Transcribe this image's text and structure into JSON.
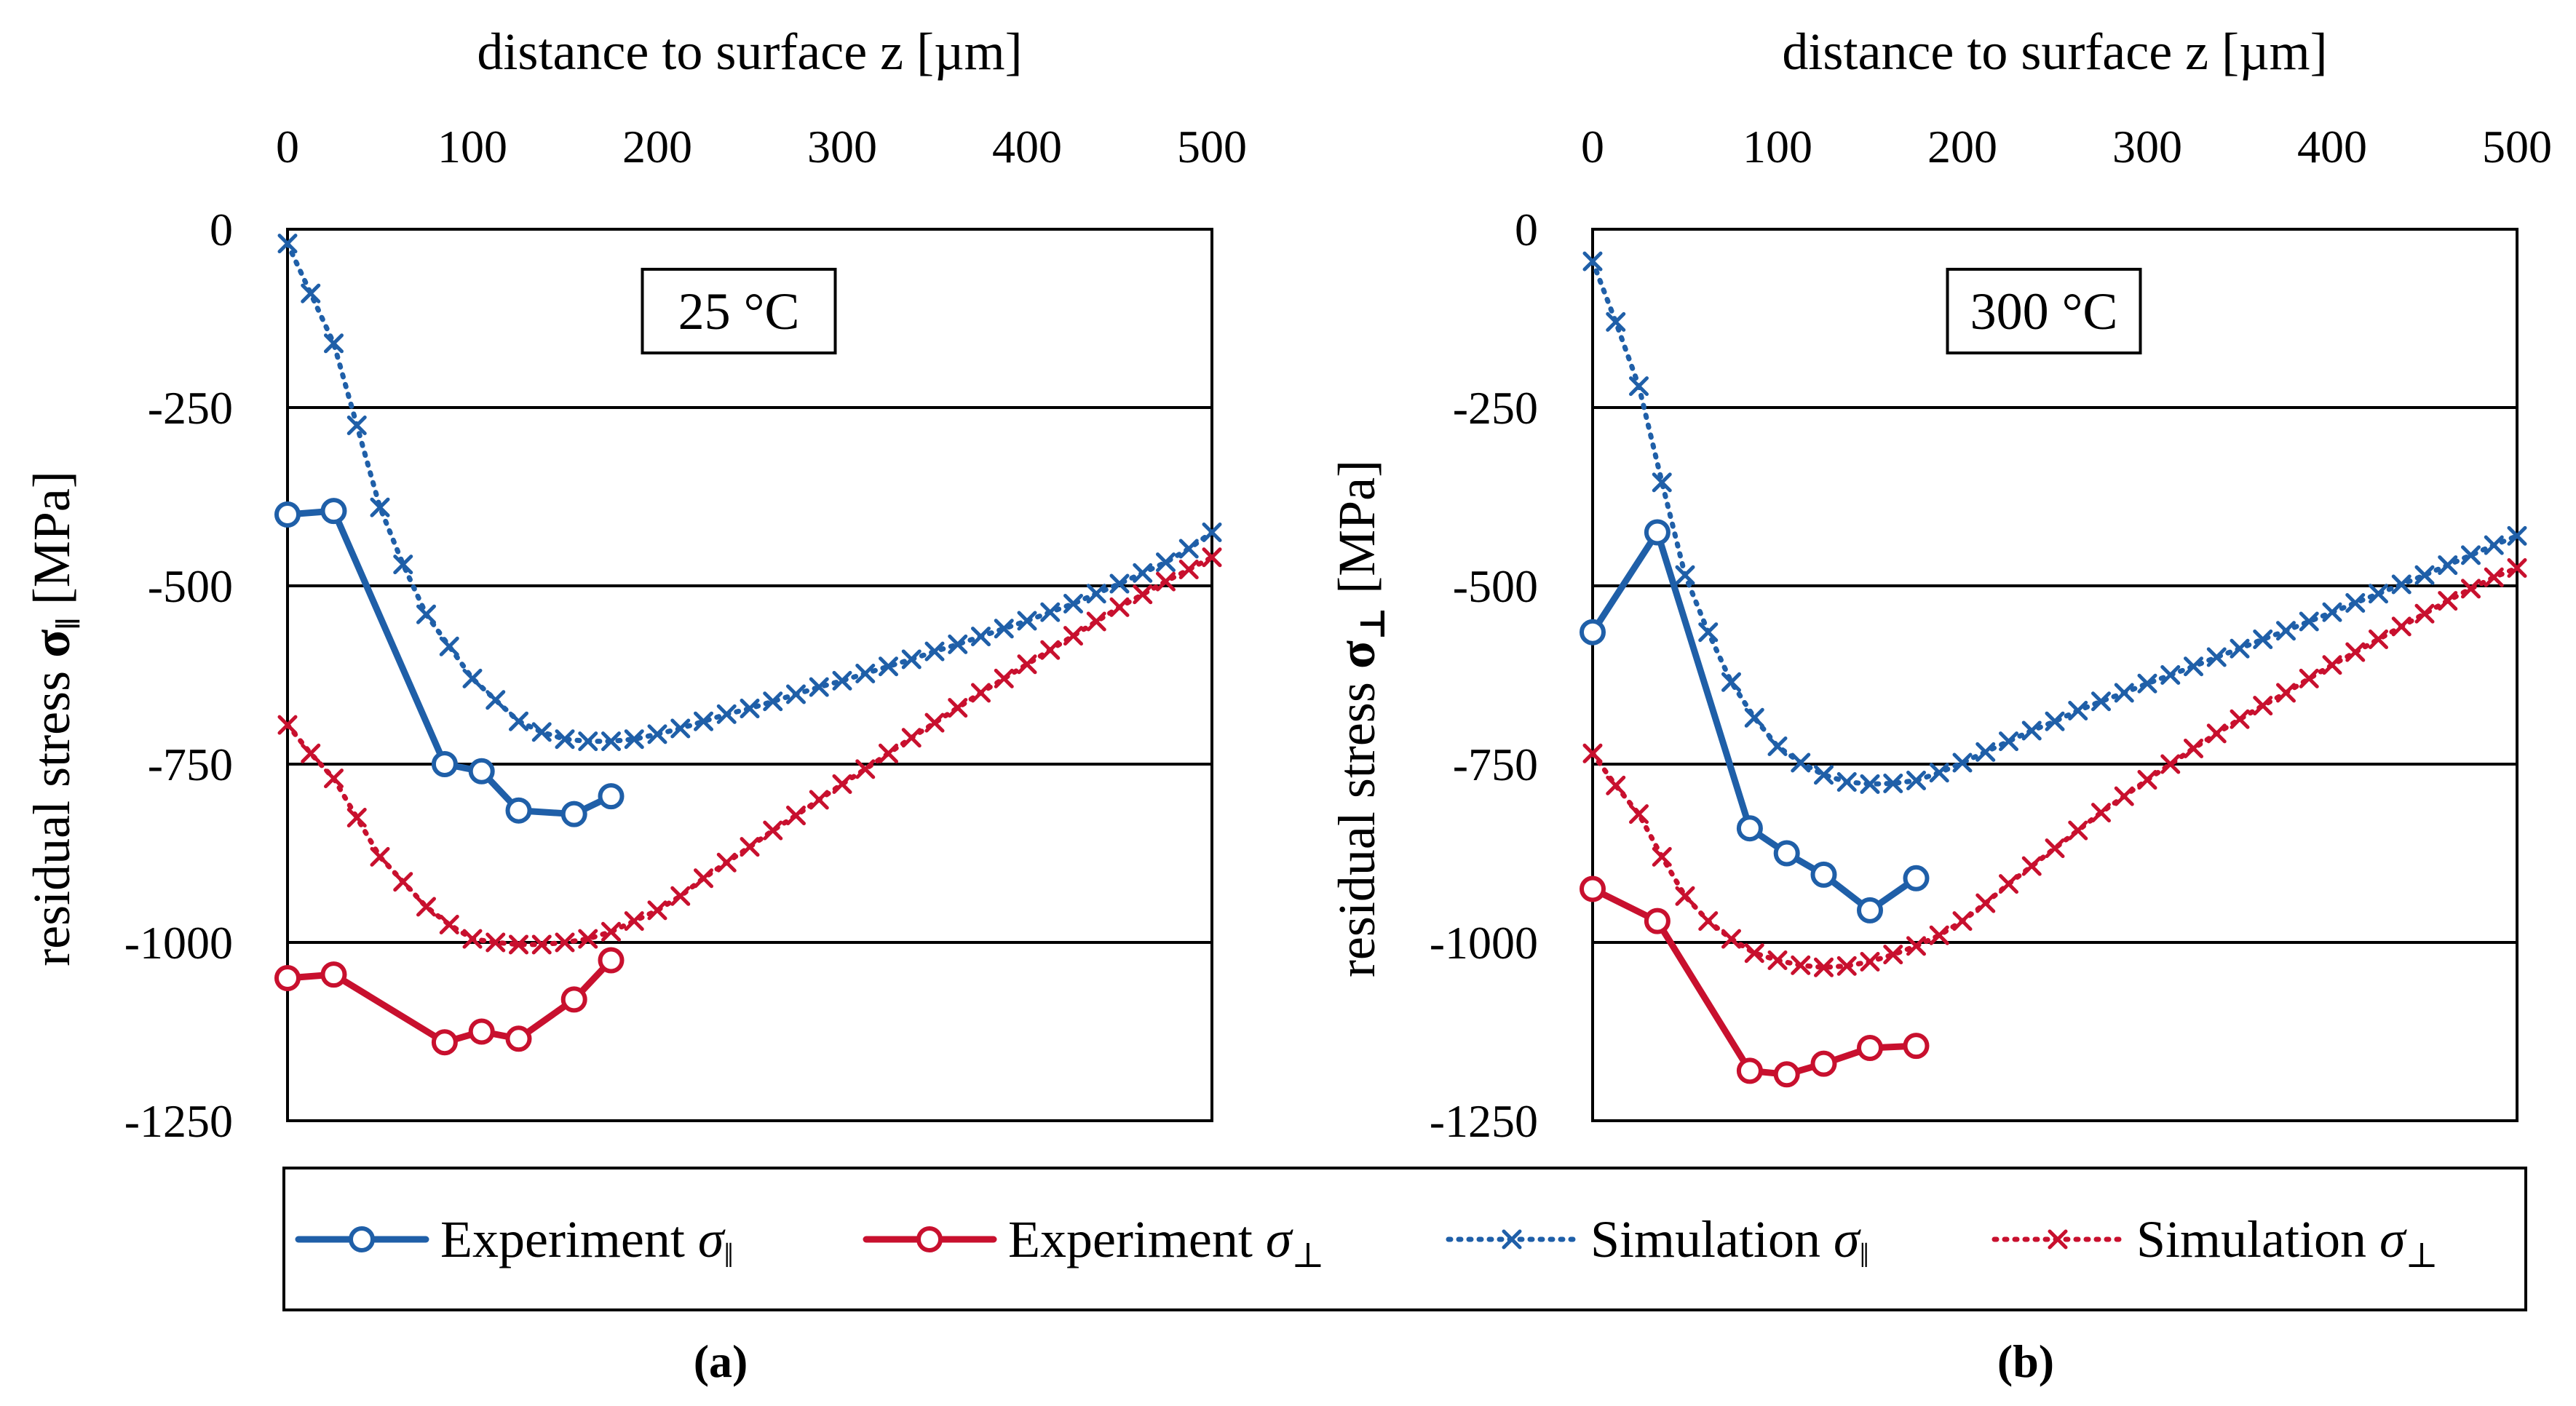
{
  "figure": {
    "legend": {
      "items": [
        {
          "label_text": "Experiment ",
          "symbol": "σ",
          "subscript": "‖",
          "color": "#1f5fa8",
          "line": "solid",
          "marker": "circle"
        },
        {
          "label_text": "Experiment ",
          "symbol": "σ",
          "subscript": "⊥",
          "color": "#c8102e",
          "line": "solid",
          "marker": "circle"
        },
        {
          "label_text": "Simulation ",
          "symbol": "σ",
          "subscript": "‖",
          "color": "#1f5fa8",
          "line": "dotted",
          "marker": "x"
        },
        {
          "label_text": "Simulation ",
          "symbol": "σ",
          "subscript": "⊥",
          "color": "#c8102e",
          "line": "dotted",
          "marker": "x"
        }
      ]
    },
    "colors": {
      "blue": "#1f5fa8",
      "red": "#c8102e",
      "grid": "#000000"
    }
  },
  "chart_data": [
    {
      "type": "line",
      "panel_label": "(a)",
      "temperature_label": "25 °C",
      "xlabel": "distance to surface z [µm]",
      "ylabel_prefix": "residual stress ",
      "ylabel_symbol": "σ",
      "ylabel_sub": "‖",
      "ylabel_suffix": " [MPa]",
      "xlim": [
        0,
        500
      ],
      "ylim": [
        -1250,
        0
      ],
      "x_axis_position": "top",
      "xticks": [
        0,
        100,
        200,
        300,
        400,
        500
      ],
      "yticks": [
        0,
        -250,
        -500,
        -750,
        -1000,
        -1250
      ],
      "series": [
        {
          "name": "Experiment σ‖",
          "color": "#1f5fa8",
          "style": "solid",
          "marker": "circle",
          "x": [
            0,
            25,
            85,
            105,
            125,
            155,
            175
          ],
          "y": [
            -400,
            -395,
            -750,
            -760,
            -815,
            -820,
            -795
          ]
        },
        {
          "name": "Experiment σ⊥",
          "color": "#c8102e",
          "style": "solid",
          "marker": "circle",
          "x": [
            0,
            25,
            85,
            105,
            125,
            155,
            175
          ],
          "y": [
            -1050,
            -1045,
            -1140,
            -1125,
            -1135,
            -1080,
            -1025
          ]
        },
        {
          "name": "Simulation σ‖",
          "color": "#1f5fa8",
          "style": "dotted",
          "marker": "x",
          "x": [
            0,
            12.5,
            25,
            37.5,
            50,
            62.5,
            75,
            87.5,
            100,
            112.5,
            125,
            137.5,
            150,
            162.5,
            175,
            187.5,
            200,
            212.5,
            225,
            237.5,
            250,
            262.5,
            275,
            287.5,
            300,
            312.5,
            325,
            337.5,
            350,
            362.5,
            375,
            387.5,
            400,
            412.5,
            425,
            437.5,
            450,
            462.5,
            475,
            487.5,
            500
          ],
          "y": [
            -20,
            -90,
            -160,
            -275,
            -390,
            -470,
            -540,
            -585,
            -630,
            -660,
            -690,
            -705,
            -715,
            -718,
            -718,
            -715,
            -708,
            -700,
            -690,
            -680,
            -672,
            -662,
            -652,
            -642,
            -633,
            -623,
            -613,
            -603,
            -592,
            -582,
            -571,
            -560,
            -549,
            -537,
            -525,
            -511,
            -497,
            -482,
            -467,
            -448,
            -425
          ]
        },
        {
          "name": "Simulation σ⊥",
          "color": "#c8102e",
          "style": "dotted",
          "marker": "x",
          "x": [
            0,
            12.5,
            25,
            37.5,
            50,
            62.5,
            75,
            87.5,
            100,
            112.5,
            125,
            137.5,
            150,
            162.5,
            175,
            187.5,
            200,
            212.5,
            225,
            237.5,
            250,
            262.5,
            275,
            287.5,
            300,
            312.5,
            325,
            337.5,
            350,
            362.5,
            375,
            387.5,
            400,
            412.5,
            425,
            437.5,
            450,
            462.5,
            475,
            487.5,
            500
          ],
          "y": [
            -695,
            -735,
            -770,
            -825,
            -880,
            -915,
            -950,
            -975,
            -995,
            -1000,
            -1003,
            -1003,
            -1000,
            -995,
            -985,
            -970,
            -955,
            -935,
            -910,
            -888,
            -866,
            -843,
            -822,
            -800,
            -778,
            -757,
            -735,
            -713,
            -692,
            -671,
            -650,
            -630,
            -610,
            -590,
            -570,
            -550,
            -530,
            -512,
            -494,
            -477,
            -460
          ]
        }
      ]
    },
    {
      "type": "line",
      "panel_label": "(b)",
      "temperature_label": "300 °C",
      "xlabel": "distance to surface z [µm]",
      "ylabel_prefix": "residual stress ",
      "ylabel_symbol": "σ",
      "ylabel_sub": "⊥",
      "ylabel_suffix": " [MPa]",
      "xlim": [
        0,
        500
      ],
      "ylim": [
        -1250,
        0
      ],
      "x_axis_position": "top",
      "xticks": [
        0,
        100,
        200,
        300,
        400,
        500
      ],
      "yticks": [
        0,
        -250,
        -500,
        -750,
        -1000,
        -1250
      ],
      "series": [
        {
          "name": "Experiment σ‖",
          "color": "#1f5fa8",
          "style": "solid",
          "marker": "circle",
          "x": [
            0,
            35,
            85,
            105,
            125,
            150,
            175
          ],
          "y": [
            -565,
            -425,
            -840,
            -875,
            -905,
            -955,
            -910
          ]
        },
        {
          "name": "Experiment σ⊥",
          "color": "#c8102e",
          "style": "solid",
          "marker": "circle",
          "x": [
            0,
            35,
            85,
            105,
            125,
            150,
            175
          ],
          "y": [
            -925,
            -970,
            -1180,
            -1185,
            -1170,
            -1148,
            -1145
          ]
        },
        {
          "name": "Simulation σ‖",
          "color": "#1f5fa8",
          "style": "dotted",
          "marker": "x",
          "x": [
            0,
            12.5,
            25,
            37.5,
            50,
            62.5,
            75,
            87.5,
            100,
            112.5,
            125,
            137.5,
            150,
            162.5,
            175,
            187.5,
            200,
            212.5,
            225,
            237.5,
            250,
            262.5,
            275,
            287.5,
            300,
            312.5,
            325,
            337.5,
            350,
            362.5,
            375,
            387.5,
            400,
            412.5,
            425,
            437.5,
            450,
            462.5,
            475,
            487.5,
            500
          ],
          "y": [
            -45,
            -130,
            -220,
            -355,
            -485,
            -565,
            -635,
            -685,
            -725,
            -748,
            -765,
            -775,
            -778,
            -777,
            -773,
            -762,
            -748,
            -733,
            -718,
            -703,
            -690,
            -675,
            -662,
            -650,
            -637,
            -625,
            -613,
            -600,
            -588,
            -575,
            -563,
            -550,
            -537,
            -524,
            -511,
            -498,
            -485,
            -471,
            -457,
            -443,
            -430
          ]
        },
        {
          "name": "Simulation σ⊥",
          "color": "#c8102e",
          "style": "dotted",
          "marker": "x",
          "x": [
            0,
            12.5,
            25,
            37.5,
            50,
            62.5,
            75,
            87.5,
            100,
            112.5,
            125,
            137.5,
            150,
            162.5,
            175,
            187.5,
            200,
            212.5,
            225,
            237.5,
            250,
            262.5,
            275,
            287.5,
            300,
            312.5,
            325,
            337.5,
            350,
            362.5,
            375,
            387.5,
            400,
            412.5,
            425,
            437.5,
            450,
            462.5,
            475,
            487.5,
            500
          ],
          "y": [
            -735,
            -780,
            -820,
            -880,
            -935,
            -970,
            -995,
            -1015,
            -1025,
            -1032,
            -1035,
            -1033,
            -1027,
            -1017,
            -1005,
            -990,
            -970,
            -945,
            -918,
            -893,
            -868,
            -843,
            -818,
            -795,
            -772,
            -750,
            -728,
            -707,
            -687,
            -668,
            -650,
            -630,
            -611,
            -593,
            -575,
            -557,
            -539,
            -521,
            -504,
            -488,
            -475
          ]
        }
      ]
    }
  ]
}
